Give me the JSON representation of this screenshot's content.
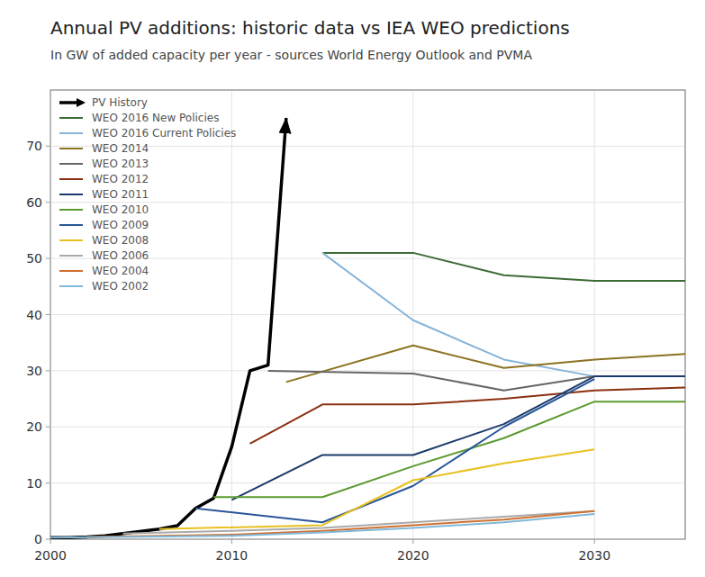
{
  "chart_data": {
    "type": "line",
    "title": "Annual PV additions: historic data vs IEA WEO predictions",
    "subtitle": "In GW of added capacity per year - sources World Energy Outlook and PVMA",
    "series": [
      {
        "name": "PV History",
        "color": "#000000",
        "marker": "arrow",
        "x": [
          2000,
          2001,
          2002,
          2003,
          2004,
          2005,
          2006,
          2007,
          2008,
          2009,
          2010,
          2011,
          2012,
          2013
        ],
        "values": [
          0.3,
          0.3,
          0.4,
          0.6,
          1.0,
          1.4,
          1.8,
          2.4,
          5.5,
          7.3,
          16.5,
          30.0,
          31.0,
          75.0
        ]
      },
      {
        "name": "WEO 2016 New Policies",
        "color": "#3d6b35",
        "x": [
          2015,
          2020,
          2025,
          2030,
          2035
        ],
        "values": [
          51.0,
          51.0,
          47.0,
          46.0,
          46.0
        ]
      },
      {
        "name": "WEO 2016 Current Policies",
        "color": "#87b4d8",
        "x": [
          2015,
          2020,
          2025,
          2030,
          2035
        ],
        "values": [
          51.0,
          39.0,
          32.0,
          29.0,
          29.0
        ]
      },
      {
        "name": "WEO 2014",
        "color": "#8b7320",
        "x": [
          2013,
          2020,
          2025,
          2030,
          2035
        ],
        "values": [
          28.0,
          34.5,
          30.5,
          32.0,
          33.0
        ]
      },
      {
        "name": "WEO 2013",
        "color": "#666666",
        "x": [
          2012,
          2020,
          2025,
          2030,
          2035
        ],
        "values": [
          30.0,
          29.5,
          26.5,
          29.0,
          29.0
        ]
      },
      {
        "name": "WEO 2012",
        "color": "#8b3010",
        "x": [
          2011,
          2015,
          2020,
          2025,
          2030,
          2035
        ],
        "values": [
          17.0,
          24.0,
          24.0,
          25.0,
          26.5,
          27.0
        ]
      },
      {
        "name": "WEO 2011",
        "color": "#1a3a6b",
        "x": [
          2010,
          2015,
          2020,
          2025,
          2030,
          2035
        ],
        "values": [
          7.0,
          15.0,
          15.0,
          20.5,
          29.0,
          29.0
        ]
      },
      {
        "name": "WEO 2010",
        "color": "#5c9a30",
        "x": [
          2009,
          2015,
          2020,
          2025,
          2030,
          2035
        ],
        "values": [
          7.5,
          7.5,
          13.0,
          18.0,
          24.5,
          24.5
        ]
      },
      {
        "name": "WEO 2009",
        "color": "#2a5699",
        "x": [
          2008,
          2015,
          2020,
          2025,
          2030
        ],
        "values": [
          5.5,
          3.0,
          9.5,
          20.0,
          28.5
        ]
      },
      {
        "name": "WEO 2008",
        "color": "#e8c020",
        "x": [
          2006,
          2015,
          2020,
          2025,
          2030
        ],
        "values": [
          1.8,
          2.5,
          10.5,
          13.5,
          16.0
        ]
      },
      {
        "name": "WEO 2006",
        "color": "#aaaaaa",
        "x": [
          2004,
          2010,
          2015,
          2020,
          2025,
          2030
        ],
        "values": [
          1.0,
          1.5,
          2.0,
          3.0,
          4.0,
          5.0
        ]
      },
      {
        "name": "WEO 2004",
        "color": "#d07030",
        "x": [
          2002,
          2010,
          2015,
          2020,
          2025,
          2030
        ],
        "values": [
          0.4,
          0.8,
          1.5,
          2.5,
          3.5,
          5.0
        ]
      },
      {
        "name": "WEO 2002",
        "color": "#80b8d8",
        "x": [
          2000,
          2010,
          2015,
          2020,
          2025,
          2030
        ],
        "values": [
          0.3,
          0.6,
          1.2,
          2.0,
          3.0,
          4.5
        ]
      }
    ],
    "xlim": [
      2000,
      2035
    ],
    "ylim": [
      0,
      80
    ],
    "xticks": [
      2000,
      2010,
      2020,
      2030
    ],
    "yticks": [
      0,
      10,
      20,
      30,
      40,
      50,
      60,
      70
    ],
    "grid": true,
    "legend": "upper left"
  }
}
